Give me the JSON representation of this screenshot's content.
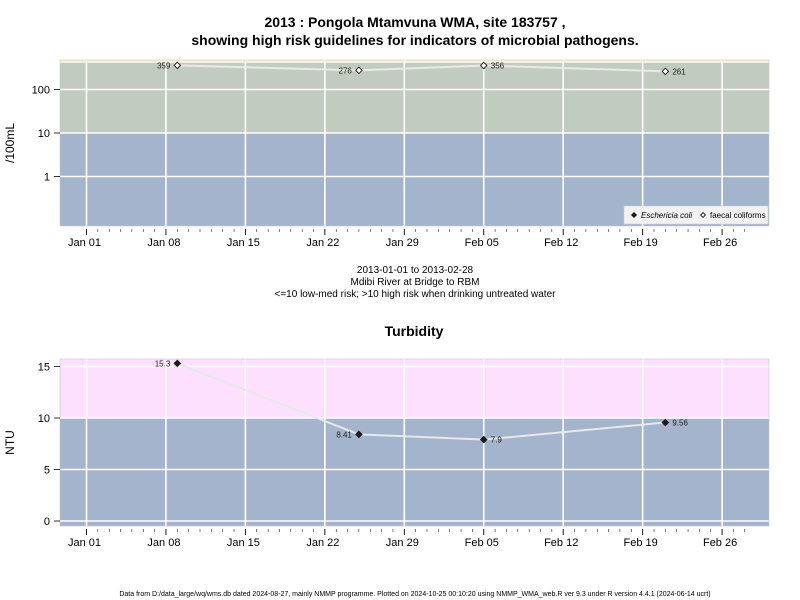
{
  "title_line1": "2013 : Pongola Mtamvuna WMA, site 183757 ,",
  "title_line2": "showing high risk guidelines for indicators of microbial pathogens.",
  "caption_line1": "2013-01-01 to 2013-02-28",
  "caption_line2": "Mdibi River at Bridge to RBM",
  "caption_line3": "<=10 low-med risk; >10 high risk when drinking untreated water",
  "footer": "Data from D:/data_large/wq/wms.db dated 2024-08-27, mainly NMMP programme. Plotted on 2024-10-25 00:10:20 using NMMP_WMA_web.R ver 9.3 under R version 4.4.1 (2024-06-14 ucrt)",
  "colors": {
    "risk_low": "#a3b4cc",
    "risk_high_micro": "#c2cbbf",
    "risk_high_turb": "#fde0fd",
    "top_strip": "#f5f3d0",
    "grid": "#ffffff",
    "line": "#e8e8e8",
    "marker": "#1a1a1a"
  },
  "chart_data": [
    {
      "type": "line",
      "title": "",
      "xlabel": "",
      "ylabel": "/100mL",
      "yscale": "log",
      "x_ticks": [
        "Jan 01",
        "Jan 08",
        "Jan 15",
        "Jan 22",
        "Jan 29",
        "Feb 05",
        "Feb 12",
        "Feb 19",
        "Feb 26"
      ],
      "y_ticks": [
        "1",
        "10",
        "100"
      ],
      "threshold": 10,
      "legend": {
        "placement": "bottom-right",
        "entries": [
          "Eschericia coli",
          "faecal coliforms"
        ]
      },
      "series": [
        {
          "name": "faecal coliforms",
          "marker": "open-diamond",
          "points": [
            {
              "x": "2013-01-09",
              "y": 359,
              "label": "359"
            },
            {
              "x": "2013-01-25",
              "y": 276,
              "label": "276"
            },
            {
              "x": "2013-02-05",
              "y": 356,
              "label": "356"
            },
            {
              "x": "2013-02-21",
              "y": 261,
              "label": "261"
            }
          ]
        }
      ]
    },
    {
      "type": "line",
      "title": "Turbidity",
      "xlabel": "",
      "ylabel": "NTU",
      "ylim": [
        0,
        16
      ],
      "x_ticks": [
        "Jan 01",
        "Jan 08",
        "Jan 15",
        "Jan 22",
        "Jan 29",
        "Feb 05",
        "Feb 12",
        "Feb 19",
        "Feb 26"
      ],
      "y_ticks": [
        "0",
        "5",
        "10",
        "15"
      ],
      "threshold": 10,
      "series": [
        {
          "name": "",
          "marker": "filled-diamond",
          "points": [
            {
              "x": "2013-01-09",
              "y": 15.3,
              "label": "15.3"
            },
            {
              "x": "2013-01-25",
              "y": 8.41,
              "label": "8.41"
            },
            {
              "x": "2013-02-05",
              "y": 7.9,
              "label": "7.9"
            },
            {
              "x": "2013-02-21",
              "y": 9.56,
              "label": "9.56"
            }
          ]
        }
      ]
    }
  ]
}
